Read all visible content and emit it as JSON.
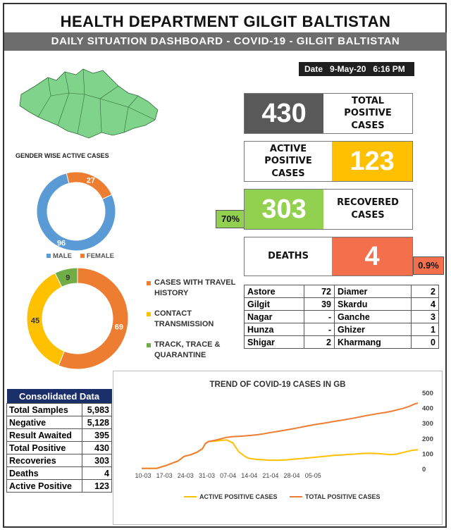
{
  "header": {
    "title": "HEALTH DEPARTMENT GILGIT BALTISTAN",
    "subtitle": "DAILY SITUATION DASHBOARD - COVID-19 - GILGIT BALTISTAN",
    "date_label": "Date",
    "date_value": "9-May-20",
    "time_value": "6:16 PM"
  },
  "colors": {
    "total": "#595959",
    "active": "#ffc000",
    "recovered": "#92d050",
    "deaths": "#f4704c",
    "male": "#5b9bd5",
    "female": "#ed7d31",
    "travel": "#ed7d31",
    "contact": "#ffc000",
    "track": "#70ad47",
    "map": "#7fd38a"
  },
  "stats": {
    "total": {
      "value": "430",
      "label": "TOTAL POSITIVE CASES"
    },
    "active": {
      "value": "123",
      "label": "ACTIVE POSITIVE CASES"
    },
    "recovered": {
      "value": "303",
      "label": "RECOVERED CASES",
      "pct": "70%"
    },
    "deaths": {
      "value": "4",
      "label": "DEATHS",
      "pct": "0.9%"
    }
  },
  "districts": [
    {
      "left_name": "Astore",
      "left_value": "72",
      "right_name": "Diamer",
      "right_value": "2"
    },
    {
      "left_name": "Gilgit",
      "left_value": "39",
      "right_name": "Skardu",
      "right_value": "4"
    },
    {
      "left_name": "Nagar",
      "left_value": "-",
      "right_name": "Ganche",
      "right_value": "3"
    },
    {
      "left_name": "Hunza",
      "left_value": "-",
      "right_name": "Ghizer",
      "right_value": "1"
    },
    {
      "left_name": "Shigar",
      "left_value": "2",
      "right_name": "Kharmang",
      "right_value": "0"
    }
  ],
  "consolidated": {
    "title": "Consolidated Data",
    "rows": [
      {
        "label": "Total Samples",
        "value": "5,983"
      },
      {
        "label": "Negative",
        "value": "5,128"
      },
      {
        "label": "Result Awaited",
        "value": "395"
      },
      {
        "label": "Total Positive",
        "value": "430"
      },
      {
        "label": "Recoveries",
        "value": "303"
      },
      {
        "label": "Deaths",
        "value": "4"
      },
      {
        "label": "Active Positive",
        "value": "123"
      }
    ]
  },
  "chart_data": [
    {
      "type": "pie",
      "title": "GENDER WISE ACTIVE CASES",
      "donut": true,
      "labels": [
        "MALE",
        "FEMALE"
      ],
      "values": [
        96,
        27
      ],
      "legend": "bottom"
    },
    {
      "type": "pie",
      "donut": true,
      "labels": [
        "CASES WITH TRAVEL HISTORY",
        "CONTACT TRANSMISSION",
        "TRACK, TRACE & QUARANTINE"
      ],
      "values": [
        69,
        45,
        9
      ],
      "legend": "right"
    },
    {
      "type": "line",
      "title": "TREND OF COVID-19 CASES IN GB",
      "x_ticks": [
        "10-03",
        "17-03",
        "24-03",
        "31-03",
        "07-04",
        "14-04",
        "21-04",
        "28-04",
        "05-05"
      ],
      "ylim": [
        0,
        500
      ],
      "y_ticks": [
        0,
        100,
        200,
        300,
        400,
        500
      ],
      "legend": "bottom",
      "series": [
        {
          "name": "ACTIVE POSITIVE CASES",
          "color": "#ffc000",
          "x": [
            0,
            5,
            8,
            12,
            14,
            16,
            18,
            20,
            21,
            22,
            24,
            26,
            28,
            30,
            31,
            32,
            33,
            34,
            35,
            36,
            38,
            40,
            42,
            45,
            48,
            50,
            52,
            54,
            56,
            58,
            60,
            62,
            64,
            66,
            68,
            70,
            72,
            74,
            76,
            78,
            80,
            82,
            84,
            85,
            86,
            87,
            88,
            89,
            90,
            91
          ],
          "y": [
            1,
            2,
            20,
            50,
            80,
            90,
            105,
            130,
            165,
            178,
            180,
            185,
            188,
            170,
            140,
            110,
            95,
            80,
            70,
            65,
            60,
            58,
            55,
            55,
            58,
            62,
            65,
            68,
            72,
            76,
            80,
            84,
            88,
            90,
            93,
            95,
            98,
            100,
            100,
            98,
            95,
            92,
            95,
            100,
            105,
            110,
            115,
            120,
            122,
            123
          ]
        },
        {
          "name": "TOTAL POSITIVE CASES",
          "color": "#ed7d31",
          "x": [
            0,
            5,
            8,
            12,
            14,
            16,
            18,
            20,
            21,
            22,
            24,
            26,
            28,
            30,
            32,
            34,
            36,
            38,
            40,
            42,
            45,
            48,
            50,
            52,
            54,
            56,
            58,
            60,
            62,
            64,
            66,
            68,
            70,
            72,
            74,
            76,
            78,
            80,
            82,
            84,
            86,
            88,
            90,
            91
          ],
          "y": [
            1,
            2,
            20,
            50,
            80,
            90,
            105,
            130,
            165,
            178,
            185,
            195,
            205,
            210,
            212,
            215,
            218,
            222,
            228,
            235,
            245,
            255,
            262,
            270,
            278,
            285,
            292,
            298,
            305,
            312,
            318,
            325,
            332,
            340,
            348,
            355,
            362,
            368,
            375,
            385,
            395,
            408,
            425,
            430
          ]
        }
      ]
    }
  ]
}
